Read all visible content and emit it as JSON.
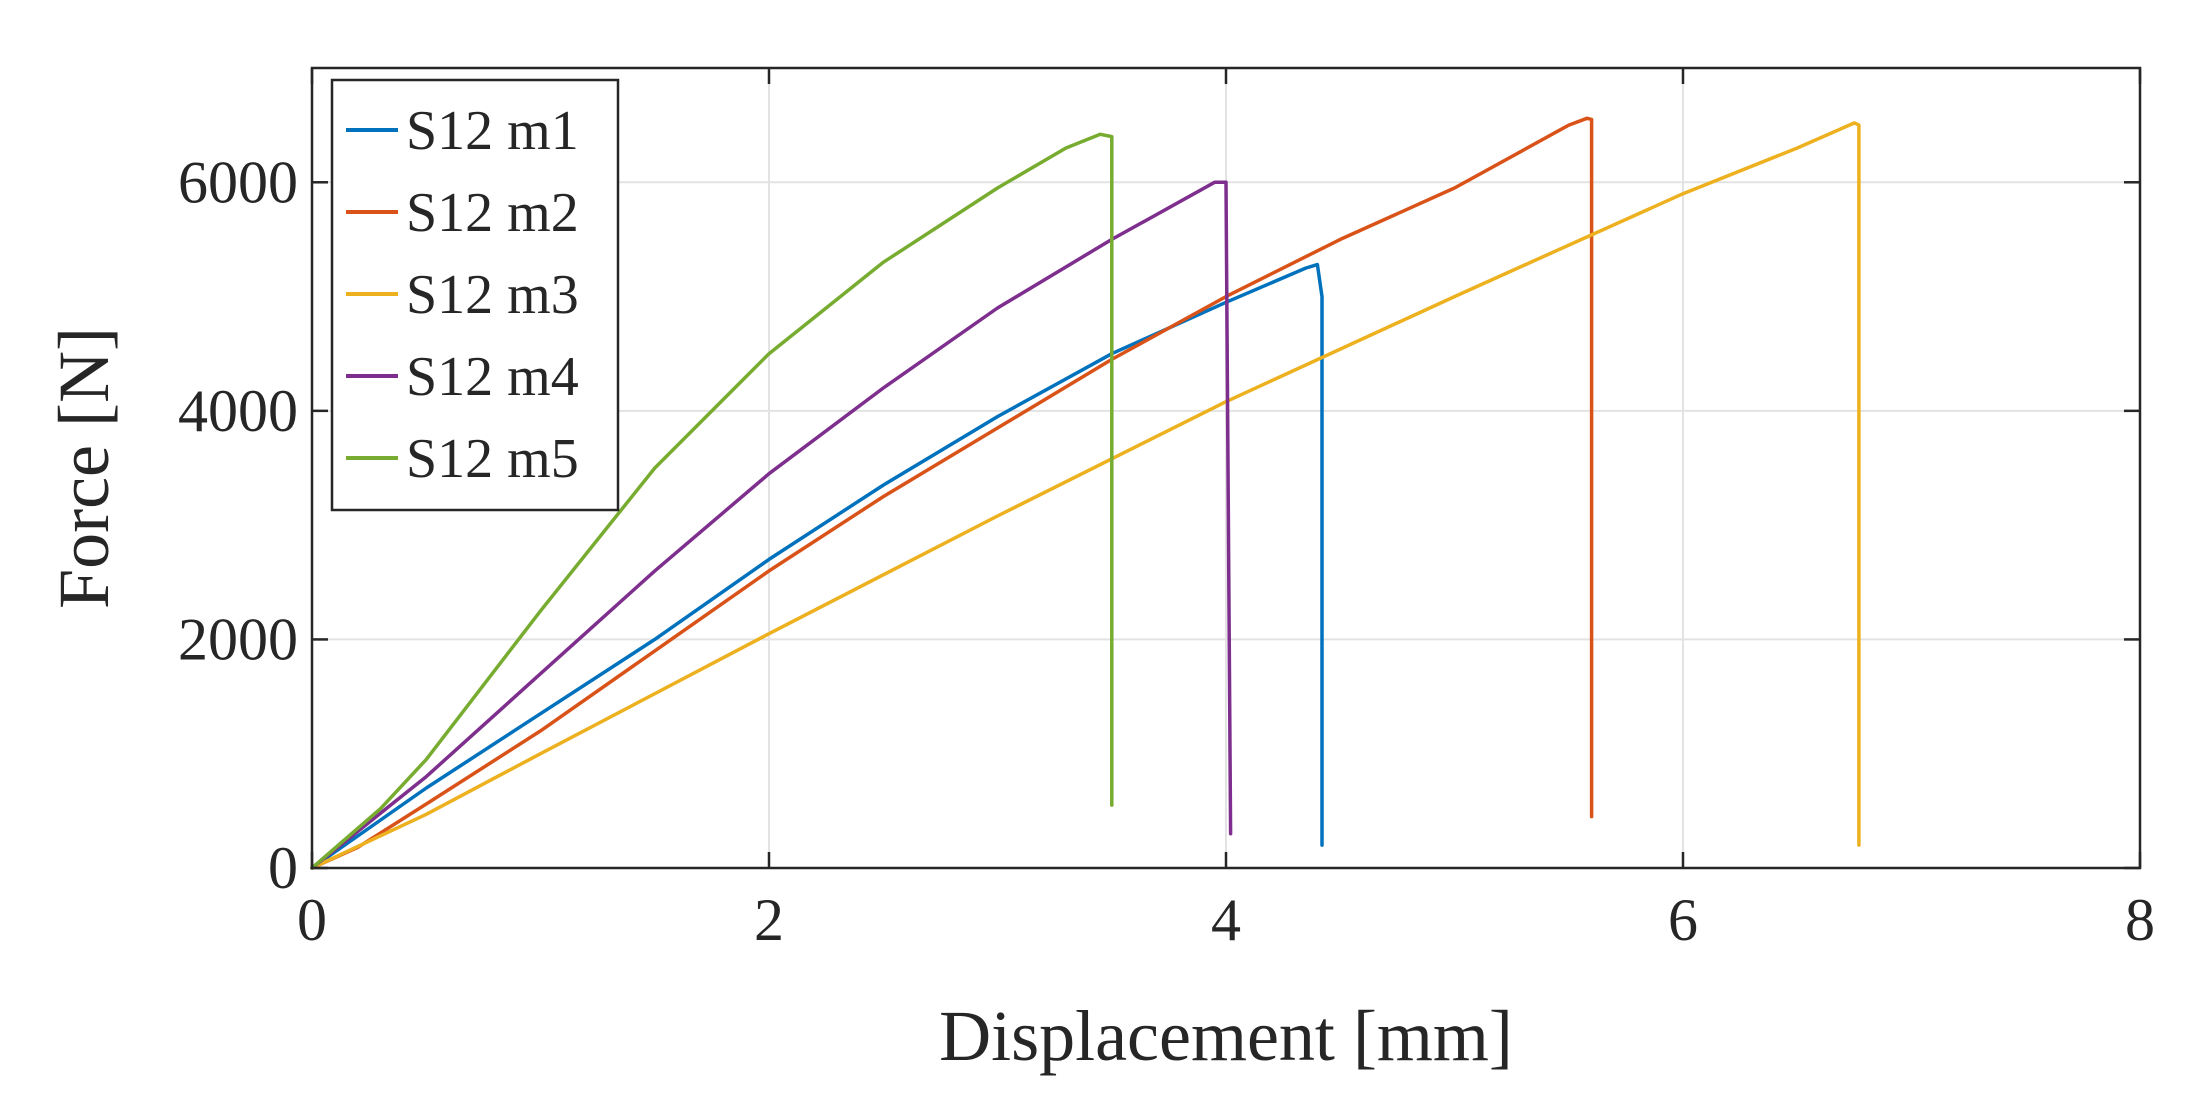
{
  "chart_data": {
    "type": "line",
    "title": "",
    "xlabel": "Displacement [mm]",
    "ylabel": "Force [N]",
    "xlim": [
      0,
      8
    ],
    "ylim": [
      0,
      7000
    ],
    "xticks": [
      0,
      2,
      4,
      6,
      8
    ],
    "yticks": [
      0,
      2000,
      4000,
      6000
    ],
    "xtick_labels": [
      "0",
      "2",
      "4",
      "6",
      "8"
    ],
    "ytick_labels": [
      "0",
      "2000",
      "4000",
      "6000"
    ],
    "grid": true,
    "legend_position": "top-left",
    "series": [
      {
        "name": "S12 m1",
        "color": "#0072BD",
        "x": [
          0,
          0.3,
          0.5,
          1.0,
          1.5,
          2.0,
          2.5,
          3.0,
          3.5,
          4.0,
          4.35,
          4.4,
          4.42,
          4.42
        ],
        "y": [
          0,
          420,
          700,
          1350,
          2000,
          2700,
          3350,
          3950,
          4500,
          4950,
          5250,
          5280,
          5000,
          200
        ]
      },
      {
        "name": "S12 m2",
        "color": "#D95319",
        "x": [
          0,
          0.2,
          0.5,
          1.0,
          1.5,
          2.0,
          2.5,
          3.0,
          3.5,
          4.0,
          4.5,
          5.0,
          5.5,
          5.58,
          5.6,
          5.6
        ],
        "y": [
          0,
          180,
          560,
          1200,
          1900,
          2600,
          3250,
          3850,
          4450,
          5000,
          5500,
          5950,
          6500,
          6560,
          6550,
          450
        ]
      },
      {
        "name": "S12 m3",
        "color": "#EDB120",
        "x": [
          0,
          0.5,
          1.0,
          2.0,
          3.0,
          4.0,
          5.0,
          6.0,
          6.5,
          6.75,
          6.77,
          6.77
        ],
        "y": [
          0,
          470,
          1000,
          2050,
          3080,
          4080,
          5000,
          5900,
          6300,
          6520,
          6500,
          200
        ]
      },
      {
        "name": "S12 m4",
        "color": "#7E2F8E",
        "x": [
          0,
          0.3,
          0.5,
          1.0,
          1.5,
          2.0,
          2.5,
          3.0,
          3.5,
          3.95,
          4.0,
          4.02
        ],
        "y": [
          0,
          480,
          800,
          1700,
          2600,
          3450,
          4200,
          4900,
          5500,
          6000,
          6000,
          300
        ]
      },
      {
        "name": "S12 m5",
        "color": "#77AC30",
        "x": [
          0,
          0.3,
          0.5,
          1.0,
          1.5,
          2.0,
          2.5,
          3.0,
          3.3,
          3.45,
          3.5,
          3.5
        ],
        "y": [
          0,
          520,
          950,
          2250,
          3500,
          4500,
          5300,
          5950,
          6300,
          6420,
          6400,
          550
        ]
      }
    ]
  }
}
